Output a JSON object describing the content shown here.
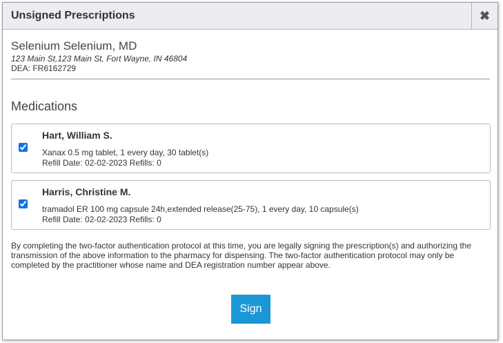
{
  "dialog": {
    "title": "Unsigned Prescriptions",
    "close_label": "✖"
  },
  "provider": {
    "name": "Selenium Selenium, MD",
    "address": "123 Main St,123 Main St, Fort Wayne, IN 46804",
    "dea": "DEA: FR6162729"
  },
  "medications_heading": "Medications",
  "medications": [
    {
      "patient": "Hart, William S.",
      "drug": "Xanax 0.5 mg tablet, 1 every day, 30 tablet(s)",
      "refill": "Refill Date: 02-02-2023 Refills: 0",
      "checked": true
    },
    {
      "patient": "Harris, Christine M.",
      "drug": "tramadol ER 100 mg capsule 24h,extended release(25-75), 1 every day, 10 capsule(s)",
      "refill": "Refill Date: 02-02-2023 Refills: 0",
      "checked": true
    }
  ],
  "legal_text": "By completing the two-factor authentication protocol at this time, you are legally signing the prescription(s) and authorizing the transmission of the above information to the pharmacy for dispensing. The two-factor authentication protocol may only be completed by the practitioner whose name and DEA registration number appear above.",
  "sign_label": "Sign",
  "colors": {
    "accent": "#1c97d6",
    "header_bg": "#ececf2"
  }
}
